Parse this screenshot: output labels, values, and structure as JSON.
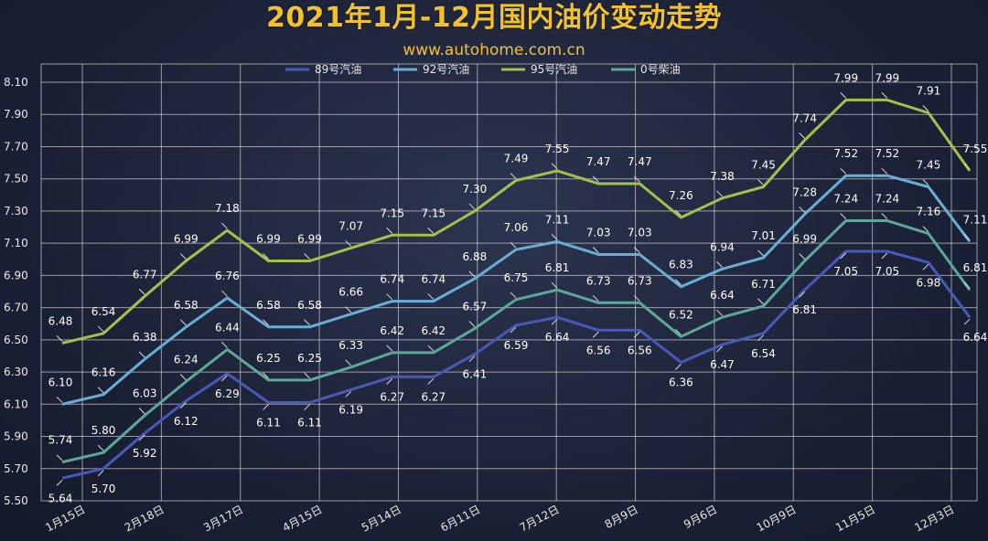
{
  "header": {
    "title": "2021年1月-12月国内油价变动走势",
    "subtitle": "www.autohome.com.cn"
  },
  "chart_data": {
    "type": "line",
    "title": "2021年1月-12月国内油价变动走势",
    "subtitle": "www.autohome.com.cn",
    "x_tick_labels": [
      "1月15日",
      "2月18日",
      "3月17日",
      "4月15日",
      "5月14日",
      "6月11日",
      "7月12日",
      "8月9日",
      "9月6日",
      "10月9日",
      "11月5日",
      "12月3日"
    ],
    "ylim": [
      5.5,
      8.1
    ],
    "y_ticks": [
      "5.50",
      "5.70",
      "5.90",
      "6.10",
      "6.30",
      "6.50",
      "6.70",
      "6.90",
      "7.10",
      "7.30",
      "7.50",
      "7.70",
      "7.90",
      "8.10"
    ],
    "grid": true,
    "legend_position": "top",
    "series": [
      {
        "name": "89号汽油",
        "color": "#4a58b8",
        "values": [
          5.64,
          5.7,
          5.92,
          6.12,
          6.29,
          6.11,
          6.11,
          6.19,
          6.27,
          6.27,
          6.41,
          6.59,
          6.64,
          6.56,
          6.56,
          6.36,
          6.47,
          6.54,
          6.81,
          7.05,
          7.05,
          6.98,
          6.64
        ]
      },
      {
        "name": "92号汽油",
        "color": "#6aaed6",
        "values": [
          6.1,
          6.16,
          6.38,
          6.58,
          6.76,
          6.58,
          6.58,
          6.66,
          6.74,
          6.74,
          6.88,
          7.06,
          7.11,
          7.03,
          7.03,
          6.83,
          6.94,
          7.01,
          7.28,
          7.52,
          7.52,
          7.45,
          7.11
        ]
      },
      {
        "name": "95号汽油",
        "color": "#a3c24a",
        "values": [
          6.48,
          6.54,
          6.77,
          6.99,
          7.18,
          6.99,
          6.99,
          7.07,
          7.15,
          7.15,
          7.3,
          7.49,
          7.55,
          7.47,
          7.47,
          7.26,
          7.38,
          7.45,
          7.74,
          7.99,
          7.99,
          7.91,
          7.55
        ]
      },
      {
        "name": "0号柴油",
        "color": "#5da89a",
        "values": [
          5.74,
          5.8,
          6.03,
          6.24,
          6.44,
          6.25,
          6.25,
          6.33,
          6.42,
          6.42,
          6.57,
          6.75,
          6.81,
          6.73,
          6.73,
          6.52,
          6.64,
          6.71,
          6.99,
          7.24,
          7.24,
          7.16,
          6.81
        ]
      }
    ]
  }
}
